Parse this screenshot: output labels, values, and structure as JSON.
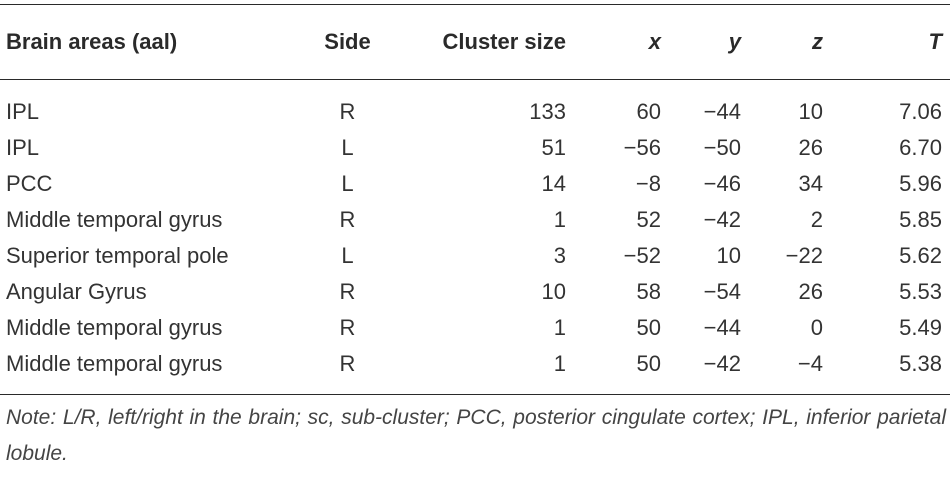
{
  "table": {
    "headers": {
      "area": "Brain areas (aal)",
      "side": "Side",
      "cluster": "Cluster size",
      "x": "x",
      "y": "y",
      "z": "z",
      "t": "T"
    },
    "rows": [
      {
        "area": "IPL",
        "side": "R",
        "cluster": "133",
        "x": "60",
        "y": "−44",
        "z": "10",
        "t": "7.06"
      },
      {
        "area": "IPL",
        "side": "L",
        "cluster": "51",
        "x": "−56",
        "y": "−50",
        "z": "26",
        "t": "6.70"
      },
      {
        "area": "PCC",
        "side": "L",
        "cluster": "14",
        "x": "−8",
        "y": "−46",
        "z": "34",
        "t": "5.96"
      },
      {
        "area": "Middle temporal gyrus",
        "side": "R",
        "cluster": "1",
        "x": "52",
        "y": "−42",
        "z": "2",
        "t": "5.85"
      },
      {
        "area": "Superior temporal pole",
        "side": "L",
        "cluster": "3",
        "x": "−52",
        "y": "10",
        "z": "−22",
        "t": "5.62"
      },
      {
        "area": "Angular Gyrus",
        "side": "R",
        "cluster": "10",
        "x": "58",
        "y": "−54",
        "z": "26",
        "t": "5.53"
      },
      {
        "area": "Middle temporal gyrus",
        "side": "R",
        "cluster": "1",
        "x": "50",
        "y": "−44",
        "z": "0",
        "t": "5.49"
      },
      {
        "area": "Middle temporal gyrus",
        "side": "R",
        "cluster": "1",
        "x": "50",
        "y": "−42",
        "z": "−4",
        "t": "5.38"
      }
    ]
  },
  "note": "Note: L/R, left/right in the brain; sc, sub-cluster; PCC, posterior cingulate cortex; IPL, inferior parietal lobule."
}
